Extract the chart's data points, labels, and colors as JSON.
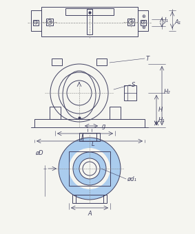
{
  "bg_color": "#f5f5f0",
  "line_color": "#404060",
  "blue_color": "#6699cc",
  "light_blue": "#aaccee",
  "fig_width": 2.83,
  "fig_height": 3.4,
  "dpi": 100,
  "labels": {
    "J1": "J₁",
    "A1": "A₁",
    "T": "T",
    "S": "S",
    "H2": "H₂",
    "H": "H",
    "H1": "H₁",
    "J": "J",
    "L": "L",
    "g": "g",
    "phiD": "øD",
    "phid1": "ød₁",
    "A": "A"
  }
}
